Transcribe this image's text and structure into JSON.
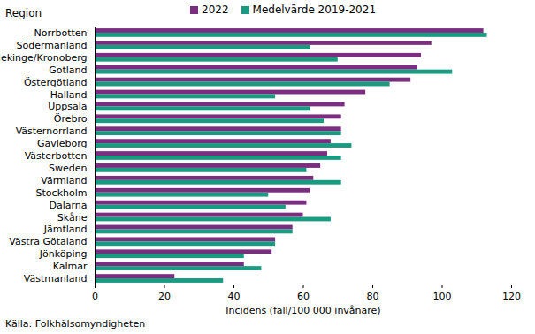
{
  "chart_data": {
    "type": "bar",
    "orientation": "horizontal",
    "y_label": "Region",
    "x_label": "Incidens (fall/100 000 invånare)",
    "caption": "Källa: Folkhälsomyndigheten",
    "categories": [
      "Norrbotten",
      "Södermanland",
      "Blekinge/Kronoberg",
      "Gotland",
      "Östergötland",
      "Halland",
      "Uppsala",
      "Örebro",
      "Västernorrland",
      "Gävleborg",
      "Västerbotten",
      "Sweden",
      "Värmland",
      "Stockholm",
      "Dalarna",
      "Skåne",
      "Jämtland",
      "Västra Götaland",
      "Jönköping",
      "Kalmar",
      "Västmanland"
    ],
    "series": [
      {
        "name": "2022",
        "color": "#7b2d80",
        "values": [
          112,
          97,
          94,
          93,
          91,
          78,
          72,
          71,
          71,
          68,
          67,
          65,
          63,
          62,
          61,
          60,
          57,
          52,
          51,
          43,
          23
        ]
      },
      {
        "name": "Medelvärde 2019-2021",
        "color": "#189b80",
        "values": [
          113,
          62,
          70,
          103,
          85,
          52,
          62,
          66,
          71,
          74,
          71,
          61,
          71,
          50,
          55,
          68,
          57,
          52,
          43,
          48,
          37
        ]
      }
    ],
    "xlim": [
      0,
      120
    ],
    "xticks": [
      0,
      20,
      40,
      60,
      80,
      100,
      120
    ],
    "grid": false,
    "legend": "top"
  }
}
